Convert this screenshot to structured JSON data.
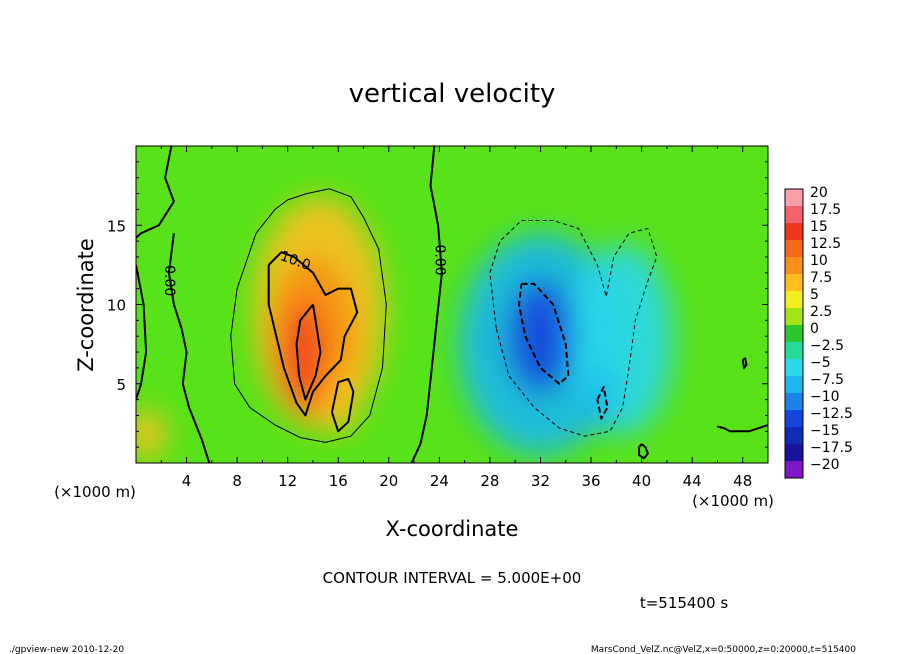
{
  "chart_data": {
    "type": "heatmap",
    "title": "vertical velocity",
    "xlabel": "X-coordinate",
    "ylabel": "Z-coordinate",
    "x_unit_left": "(×1000 m)",
    "x_unit_right": "(×1000 m)",
    "x_ticks": [
      4,
      8,
      12,
      16,
      20,
      24,
      28,
      32,
      36,
      40,
      44,
      48
    ],
    "y_ticks": [
      5,
      10,
      15
    ],
    "xlim": [
      0,
      50
    ],
    "ylim": [
      0,
      20
    ],
    "contour_interval_text": "CONTOUR INTERVAL = 5.000E+00",
    "time_text": "t=515400 s",
    "contour_labels": [
      {
        "text": "0.00",
        "x": 2.3,
        "y": 11.5
      },
      {
        "text": "10.0",
        "x": 12.5,
        "y": 12.5
      },
      {
        "text": "0.00",
        "x": 23.7,
        "y": 12.8
      }
    ],
    "colorbar": {
      "labels": [
        "20",
        "17.5",
        "15",
        "12.5",
        "10",
        "7.5",
        "5",
        "2.5",
        "0",
        "−2.5",
        "−5",
        "−7.5",
        "−10",
        "−12.5",
        "−15",
        "−17.5",
        "−20"
      ],
      "colors": [
        "#f7a0a8",
        "#f3626a",
        "#f0361e",
        "#f26a18",
        "#f88f1a",
        "#fbc01c",
        "#f2ee1c",
        "#a4e414",
        "#2ac82a",
        "#22dc9a",
        "#2ad8ec",
        "#1ab8ec",
        "#1e82ec",
        "#1446dc",
        "#102cb4",
        "#18129c",
        "#7e18c6"
      ]
    },
    "blobs": [
      {
        "cx": 14.5,
        "cy": 9.5,
        "rx": 5.2,
        "ry": 7.3,
        "v": 3.5
      },
      {
        "cx": 14.0,
        "cy": 8.0,
        "rx": 3.4,
        "ry": 5.0,
        "v": 4.5
      },
      {
        "cx": 13.3,
        "cy": 6.8,
        "rx": 1.5,
        "ry": 3.5,
        "v": 6.0
      },
      {
        "cx": 16.2,
        "cy": 3.8,
        "rx": 1.2,
        "ry": 2.0,
        "v": 3.0
      },
      {
        "cx": 0.8,
        "cy": 1.8,
        "rx": 1.6,
        "ry": 1.6,
        "v": 3.0
      },
      {
        "cx": 32.0,
        "cy": 7.5,
        "rx": 6.5,
        "ry": 7.0,
        "v": -3.0
      },
      {
        "cx": 32.0,
        "cy": 8.0,
        "rx": 2.6,
        "ry": 3.6,
        "v": -4.5
      },
      {
        "cx": 38.5,
        "cy": 7.8,
        "rx": 4.0,
        "ry": 6.0,
        "v": -2.0
      },
      {
        "cx": 36.8,
        "cy": 4.0,
        "rx": 1.2,
        "ry": 2.0,
        "v": -3.0
      }
    ],
    "contours": [
      {
        "style": "thin-solid",
        "points": [
          [
            15.3,
            17.3
          ],
          [
            13.5,
            17.0
          ],
          [
            12.0,
            16.6
          ],
          [
            11.0,
            16.0
          ],
          [
            9.5,
            14.5
          ],
          [
            8.0,
            11.0
          ],
          [
            7.5,
            8.0
          ],
          [
            7.8,
            5.0
          ],
          [
            9.0,
            3.5
          ],
          [
            11.0,
            2.4
          ],
          [
            13.0,
            1.6
          ],
          [
            15.0,
            1.3
          ],
          [
            17.0,
            1.7
          ],
          [
            18.5,
            3.0
          ],
          [
            19.5,
            6.0
          ],
          [
            19.8,
            10.0
          ],
          [
            19.2,
            13.5
          ],
          [
            18.0,
            15.5
          ],
          [
            17.0,
            16.8
          ],
          [
            15.3,
            17.3
          ]
        ]
      },
      {
        "style": "thick-solid",
        "points": [
          [
            10.5,
            12.5
          ],
          [
            11.5,
            13.3
          ],
          [
            12.5,
            13.0
          ],
          [
            14.0,
            12.0
          ],
          [
            15.0,
            10.6
          ],
          [
            16.0,
            11.0
          ],
          [
            17.0,
            11.0
          ],
          [
            17.5,
            9.5
          ],
          [
            16.5,
            8.0
          ],
          [
            16.2,
            6.5
          ],
          [
            15.0,
            5.5
          ],
          [
            14.0,
            4.5
          ],
          [
            13.4,
            3.0
          ],
          [
            12.7,
            3.8
          ],
          [
            11.7,
            6.0
          ],
          [
            10.5,
            10.0
          ],
          [
            10.5,
            12.5
          ]
        ]
      },
      {
        "style": "thick-solid",
        "points": [
          [
            15.5,
            3.2
          ],
          [
            16.0,
            2.0
          ],
          [
            16.8,
            2.6
          ],
          [
            17.2,
            4.5
          ],
          [
            16.8,
            5.3
          ],
          [
            16.0,
            5.1
          ],
          [
            15.5,
            3.2
          ]
        ]
      },
      {
        "style": "thick-solid",
        "points": [
          [
            14.0,
            10.0
          ],
          [
            14.6,
            7.0
          ],
          [
            14.2,
            5.5
          ],
          [
            13.4,
            4.0
          ],
          [
            12.9,
            5.5
          ],
          [
            12.7,
            7.5
          ],
          [
            13.0,
            9.0
          ],
          [
            14.0,
            10.0
          ]
        ]
      },
      {
        "style": "thick-solid",
        "points": [
          [
            23.6,
            20.0
          ],
          [
            23.3,
            17.5
          ],
          [
            23.9,
            15.0
          ],
          [
            24.2,
            12.0
          ],
          [
            23.8,
            9.0
          ],
          [
            23.4,
            6.0
          ],
          [
            23.0,
            3.0
          ],
          [
            22.5,
            1.2
          ],
          [
            21.8,
            0.0
          ]
        ]
      },
      {
        "style": "thick-solid",
        "points": [
          [
            2.8,
            20.0
          ],
          [
            2.3,
            18.0
          ],
          [
            3.0,
            16.5
          ],
          [
            1.8,
            15.0
          ],
          [
            0.4,
            14.5
          ],
          [
            0.0,
            14.2
          ]
        ]
      },
      {
        "style": "thick-solid",
        "points": [
          [
            3.0,
            14.5
          ],
          [
            2.6,
            12.0
          ],
          [
            3.0,
            10.0
          ],
          [
            3.6,
            8.5
          ],
          [
            4.0,
            7.0
          ],
          [
            3.7,
            5.0
          ],
          [
            4.2,
            3.5
          ],
          [
            5.2,
            1.5
          ],
          [
            5.8,
            0.0
          ]
        ]
      },
      {
        "style": "thick-solid",
        "points": [
          [
            0.0,
            12.5
          ],
          [
            0.6,
            10.0
          ],
          [
            0.8,
            7.0
          ],
          [
            0.4,
            5.0
          ],
          [
            0.0,
            4.0
          ]
        ]
      },
      {
        "style": "thin-dashed",
        "points": [
          [
            28.5,
            8.5
          ],
          [
            28.0,
            12.0
          ],
          [
            28.8,
            14.0
          ],
          [
            30.5,
            15.3
          ],
          [
            33.0,
            15.3
          ],
          [
            35.0,
            14.8
          ],
          [
            36.5,
            12.5
          ],
          [
            37.2,
            10.5
          ],
          [
            37.8,
            13.0
          ],
          [
            39.0,
            14.5
          ],
          [
            40.5,
            14.8
          ],
          [
            41.2,
            13.0
          ],
          [
            40.5,
            11.5
          ],
          [
            39.5,
            9.0
          ],
          [
            39.0,
            6.0
          ],
          [
            38.5,
            3.5
          ],
          [
            37.5,
            2.0
          ],
          [
            35.5,
            1.7
          ],
          [
            33.5,
            2.2
          ],
          [
            31.5,
            3.5
          ],
          [
            29.5,
            5.5
          ],
          [
            28.5,
            8.5
          ]
        ]
      },
      {
        "style": "thick-dashed",
        "points": [
          [
            30.5,
            11.3
          ],
          [
            31.5,
            11.3
          ],
          [
            33.0,
            10.0
          ],
          [
            34.0,
            7.5
          ],
          [
            34.2,
            5.5
          ],
          [
            33.5,
            5.0
          ],
          [
            32.0,
            6.0
          ],
          [
            30.8,
            8.0
          ],
          [
            30.3,
            10.0
          ],
          [
            30.5,
            11.3
          ]
        ]
      },
      {
        "style": "thick-dashed",
        "points": [
          [
            36.5,
            4.0
          ],
          [
            37.0,
            4.8
          ],
          [
            37.3,
            3.5
          ],
          [
            36.8,
            2.8
          ],
          [
            36.5,
            4.0
          ]
        ]
      },
      {
        "style": "thick-solid",
        "points": [
          [
            40.0,
            1.2
          ],
          [
            40.3,
            1.0
          ],
          [
            40.5,
            0.6
          ],
          [
            40.2,
            0.3
          ],
          [
            39.8,
            0.5
          ],
          [
            39.8,
            1.0
          ],
          [
            40.0,
            1.2
          ]
        ]
      },
      {
        "style": "thick-solid",
        "points": [
          [
            46.0,
            2.3
          ],
          [
            46.5,
            2.2
          ],
          [
            47.0,
            2.0
          ],
          [
            48.5,
            2.0
          ],
          [
            50.0,
            2.4
          ]
        ]
      },
      {
        "style": "thick-solid",
        "points": [
          [
            48.0,
            6.5
          ],
          [
            48.2,
            6.6
          ],
          [
            48.3,
            6.2
          ],
          [
            48.1,
            6.0
          ],
          [
            48.0,
            6.5
          ]
        ]
      }
    ]
  },
  "footer": {
    "left": "./gpview-new  2010-12-20",
    "right": "MarsCond_VelZ.nc@VelZ,x=0:50000,z=0:20000,t=515400"
  }
}
